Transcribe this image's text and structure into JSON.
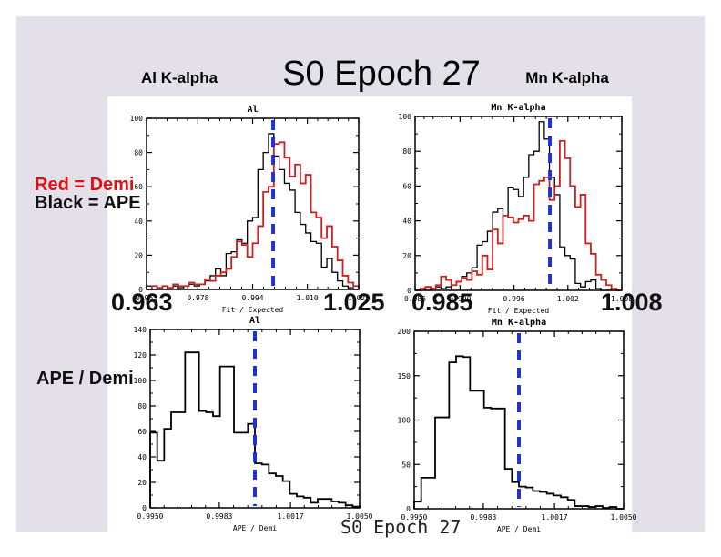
{
  "slide": {
    "header": {
      "left_label": "Al K-alpha",
      "title": "S0 Epoch 27",
      "right_label": "Mn K-alpha"
    },
    "legend": {
      "red_label": "Red = Demi",
      "black_label": "Black = APE",
      "ratio_label": "APE / Demi"
    },
    "big_axis_labels": {
      "al_min": "0.963",
      "al_max": "1.025",
      "mn_min": "0.985",
      "mn_max": "1.008"
    },
    "figure_caption": "S0 Epoch 27",
    "colors": {
      "slide_bg": "#e3e0ea",
      "figure_bg": "#ffffff",
      "demi_red": "#cc2020",
      "ape_black": "#000000",
      "ref_blue": "#2233cc"
    }
  },
  "chart_data": [
    {
      "type": "bar",
      "style": "step-histogram",
      "title": "Al",
      "xlabel": "Fit / Expected",
      "x_range": [
        0.963,
        1.025
      ],
      "x_ticks": [
        "0.963",
        "0.978",
        "0.994",
        "1.010",
        "1.025"
      ],
      "y_range": [
        0,
        100
      ],
      "y_ticks": [
        0,
        20,
        40,
        60,
        80,
        100
      ],
      "ref_line_x": 1.0,
      "bin_count": 40,
      "series": [
        {
          "name": "APE",
          "color": "#000000",
          "values": [
            2,
            0,
            1,
            0,
            1,
            2,
            1,
            2,
            3,
            2,
            3,
            5,
            8,
            12,
            8,
            21,
            22,
            29,
            27,
            40,
            42,
            70,
            80,
            91,
            78,
            70,
            62,
            58,
            45,
            38,
            33,
            28,
            27,
            13,
            18,
            10,
            5,
            2,
            1,
            0
          ]
        },
        {
          "name": "Demi",
          "color": "#cc2020",
          "values": [
            0,
            2,
            1,
            2,
            1,
            3,
            2,
            2,
            4,
            3,
            3,
            6,
            5,
            8,
            10,
            12,
            19,
            28,
            26,
            19,
            27,
            37,
            57,
            60,
            85,
            86,
            77,
            66,
            73,
            62,
            67,
            45,
            42,
            30,
            37,
            25,
            17,
            8,
            4,
            2
          ]
        }
      ]
    },
    {
      "type": "bar",
      "style": "step-histogram",
      "title": "Mn K-alpha",
      "xlabel": "Fit / Expected",
      "x_range": [
        0.985,
        1.008
      ],
      "x_ticks": [
        "0.985",
        "0.990",
        "0.996",
        "1.002",
        "1.008"
      ],
      "y_range": [
        0,
        100
      ],
      "y_ticks": [
        0,
        20,
        40,
        60,
        80,
        100
      ],
      "ref_line_x": 1.0,
      "bin_count": 40,
      "series": [
        {
          "name": "APE",
          "color": "#000000",
          "values": [
            0,
            1,
            0,
            1,
            2,
            1,
            2,
            3,
            5,
            8,
            10,
            13,
            26,
            28,
            34,
            45,
            47,
            43,
            59,
            58,
            54,
            65,
            78,
            80,
            97,
            87,
            65,
            55,
            25,
            20,
            18,
            4,
            2,
            5,
            6,
            1,
            0,
            0,
            0,
            0
          ]
        },
        {
          "name": "Demi",
          "color": "#cc2020",
          "values": [
            0,
            1,
            2,
            1,
            3,
            8,
            6,
            3,
            5,
            7,
            6,
            11,
            9,
            20,
            12,
            35,
            27,
            43,
            42,
            39,
            41,
            43,
            40,
            61,
            63,
            65,
            52,
            60,
            86,
            76,
            60,
            48,
            55,
            27,
            21,
            9,
            6,
            3,
            1,
            0
          ]
        }
      ]
    },
    {
      "type": "bar",
      "style": "step-histogram",
      "title": "Al",
      "xlabel": "APE / Demi",
      "x_range": [
        0.995,
        1.005
      ],
      "x_ticks": [
        "0.9950",
        "0.9983",
        "1.0017",
        "1.0050"
      ],
      "y_range": [
        0,
        140
      ],
      "y_ticks": [
        0,
        20,
        40,
        60,
        80,
        100,
        120,
        140
      ],
      "ref_line_x": 1.0,
      "bin_count": 30,
      "series": [
        {
          "name": "APE / Demi",
          "color": "#000000",
          "values": [
            59,
            37,
            62,
            75,
            75,
            122,
            122,
            76,
            75,
            72,
            111,
            111,
            59,
            59,
            66,
            35,
            34,
            27,
            25,
            21,
            11,
            9,
            8,
            4,
            7,
            7,
            5,
            4,
            2,
            1
          ]
        }
      ]
    },
    {
      "type": "bar",
      "style": "step-histogram",
      "title": "Mn K-alpha",
      "xlabel": "APE / Demi",
      "x_range": [
        0.995,
        1.005
      ],
      "x_ticks": [
        "0.9950",
        "0.9983",
        "1.0017",
        "1.0050"
      ],
      "y_range": [
        0,
        200
      ],
      "y_ticks": [
        0,
        50,
        100,
        150,
        200
      ],
      "ref_line_x": 1.0,
      "bin_count": 30,
      "series": [
        {
          "name": "APE / Demi",
          "color": "#000000",
          "values": [
            8,
            35,
            35,
            103,
            103,
            165,
            172,
            171,
            133,
            133,
            114,
            113,
            113,
            45,
            30,
            25,
            24,
            20,
            19,
            17,
            15,
            13,
            10,
            3,
            3,
            2,
            3,
            1,
            2,
            0
          ]
        }
      ]
    }
  ]
}
